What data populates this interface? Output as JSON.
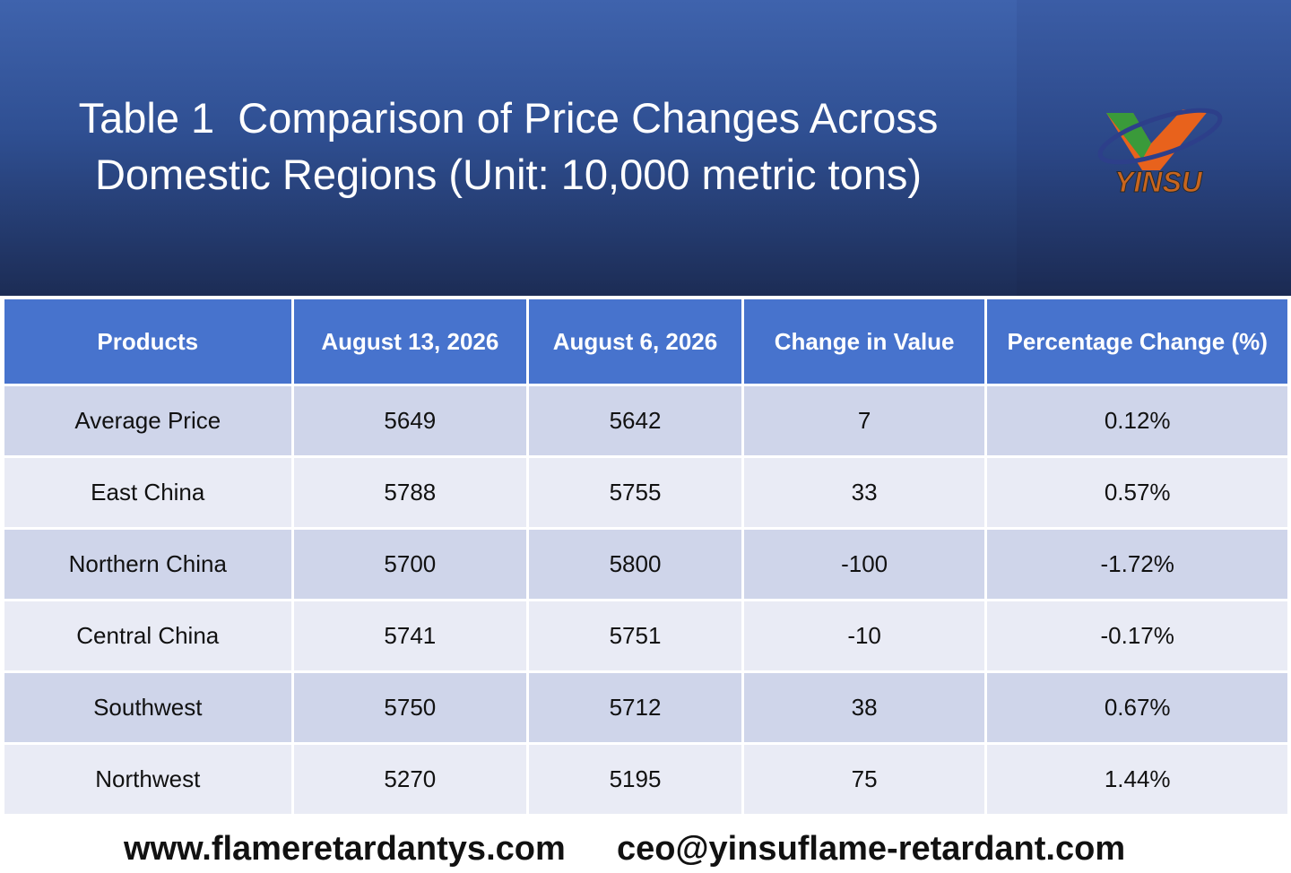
{
  "header": {
    "title": [
      "Table 1  Comparison of Price Changes Across",
      "Domestic Regions (Unit: 10,000 metric tons)"
    ],
    "logo": "YINSU"
  },
  "table": {
    "columns": [
      "Products",
      "August 13, 2026",
      "August 6, 2026",
      "Change in Value",
      "Percentage Change (%)"
    ],
    "rows": [
      [
        "Average Price",
        5649,
        5642,
        7,
        "0.12%"
      ],
      [
        "East China",
        5788,
        5755,
        33,
        "0.57%"
      ],
      [
        "Northern China",
        5700,
        5800,
        -100,
        "-1.72%"
      ],
      [
        "Central China",
        5741,
        5751,
        -10,
        "-0.17%"
      ],
      [
        "Southwest",
        5750,
        5712,
        38,
        "0.67%"
      ],
      [
        "Northwest",
        5270,
        5195,
        75,
        "1.44%"
      ]
    ]
  },
  "footer": {
    "website": "www.flameretardantys.com",
    "email": "ceo@yinsuflame-retardant.com"
  }
}
